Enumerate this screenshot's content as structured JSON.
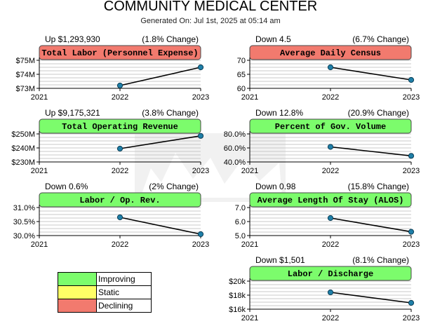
{
  "page": {
    "title": "COMMUNITY MEDICAL CENTER",
    "subtitle": "Generated On: Jul 1st, 2025 at 05:14 am"
  },
  "colors": {
    "improving": "#7CFC6C",
    "static": "#FFFF66",
    "declining": "#F27A6E"
  },
  "legend": [
    {
      "label": "Improving",
      "status": "improving"
    },
    {
      "label": "Static",
      "status": "static"
    },
    {
      "label": "Declining",
      "status": "declining"
    }
  ],
  "chart_data": [
    {
      "type": "line",
      "title": "Total Labor (Personnel Expense)",
      "status": "declining",
      "summary": "Up $1,293,930",
      "change": "(1.8% Change)",
      "x": [
        2021,
        2022,
        2023
      ],
      "series": [
        {
          "values": [
            null,
            73.2,
            74.5
          ]
        }
      ],
      "ylim": [
        73,
        75
      ],
      "yticks": [
        "$73M",
        "$74M",
        "$75M"
      ],
      "xticks": [
        "2021",
        "2022",
        "2023"
      ]
    },
    {
      "type": "line",
      "title": "Average Daily Census",
      "status": "declining",
      "summary": "Down 4.5",
      "change": "(6.7% Change)",
      "x": [
        2021,
        2022,
        2023
      ],
      "series": [
        {
          "values": [
            null,
            67.5,
            63.0
          ]
        }
      ],
      "ylim": [
        60,
        70
      ],
      "yticks": [
        "60",
        "65",
        "70"
      ],
      "xticks": [
        "2021",
        "2022",
        "2023"
      ]
    },
    {
      "type": "line",
      "title": "Total Operating Revenue",
      "status": "improving",
      "summary": "Up $9,175,321",
      "change": "(3.8% Change)",
      "x": [
        2021,
        2022,
        2023
      ],
      "series": [
        {
          "values": [
            null,
            239.5,
            248.6
          ]
        }
      ],
      "ylim": [
        230,
        250
      ],
      "yticks": [
        "$230M",
        "$240M",
        "$250M"
      ],
      "xticks": [
        "2021",
        "2022",
        "2023"
      ]
    },
    {
      "type": "line",
      "title": "Percent of Gov. Volume",
      "status": "improving",
      "summary": "Down 12.8%",
      "change": "(20.9% Change)",
      "x": [
        2021,
        2022,
        2023
      ],
      "series": [
        {
          "values": [
            null,
            61.5,
            48.7
          ]
        }
      ],
      "ylim": [
        40,
        80
      ],
      "yticks": [
        "40.0%",
        "60.0%",
        "80.0%"
      ],
      "xticks": [
        "2021",
        "2022",
        "2023"
      ]
    },
    {
      "type": "line",
      "title": "Labor / Op. Rev.",
      "status": "improving",
      "summary": "Down 0.6%",
      "change": "(2% Change)",
      "x": [
        2021,
        2022,
        2023
      ],
      "series": [
        {
          "values": [
            null,
            30.65,
            30.05
          ]
        }
      ],
      "ylim": [
        30,
        31
      ],
      "yticks": [
        "30.0%",
        "30.5%",
        "31.0%"
      ],
      "xticks": [
        "2021",
        "2022",
        "2023"
      ]
    },
    {
      "type": "line",
      "title": "Average Length Of Stay (ALOS)",
      "status": "improving",
      "summary": "Down 0.98",
      "change": "(15.8% Change)",
      "x": [
        2021,
        2022,
        2023
      ],
      "series": [
        {
          "values": [
            null,
            6.25,
            5.27
          ]
        }
      ],
      "ylim": [
        5,
        7
      ],
      "yticks": [
        "5.0",
        "6.0",
        "7.0"
      ],
      "xticks": [
        "2021",
        "2022",
        "2023"
      ]
    },
    {
      "type": "line",
      "title": "Labor / Discharge",
      "status": "improving",
      "summary": "Down $1,501",
      "change": "(8.1% Change)",
      "x": [
        2021,
        2022,
        2023
      ],
      "series": [
        {
          "values": [
            null,
            18.4,
            16.9
          ]
        }
      ],
      "ylim": [
        16,
        20
      ],
      "yticks": [
        "$16k",
        "$18k",
        "$20k"
      ],
      "xticks": [
        "2021",
        "2022",
        "2023"
      ]
    }
  ]
}
